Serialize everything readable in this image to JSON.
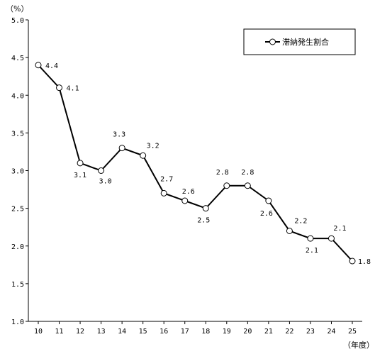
{
  "chart_data": {
    "type": "line",
    "title": "",
    "y_unit": "（%）",
    "x_unit": "（年度）",
    "categories": [
      "10",
      "11",
      "12",
      "13",
      "14",
      "15",
      "16",
      "17",
      "18",
      "19",
      "20",
      "21",
      "22",
      "23",
      "24",
      "25"
    ],
    "series": [
      {
        "name": "滞納発生割合",
        "values": [
          4.4,
          4.1,
          3.1,
          3.0,
          3.3,
          3.2,
          2.7,
          2.6,
          2.5,
          2.8,
          2.8,
          2.6,
          2.2,
          2.1,
          2.1,
          1.8
        ],
        "labels": [
          "4.4",
          "4.1",
          "3.1",
          "3.0",
          "3.3",
          "3.2",
          "2.7",
          "2.6",
          "2.5",
          "2.8",
          "2.8",
          "2.6",
          "2.2",
          "2.1",
          "2.1",
          "1.8"
        ]
      }
    ],
    "ylim": [
      1.0,
      5.0
    ],
    "yticks": [
      "1.0",
      "1.5",
      "2.0",
      "2.5",
      "3.0",
      "3.5",
      "4.0",
      "4.5",
      "5.0"
    ],
    "grid": false,
    "legend_position": "top-right",
    "colors": {
      "line": "#000000",
      "marker_fill": "#ffffff",
      "axis": "#000000"
    }
  }
}
